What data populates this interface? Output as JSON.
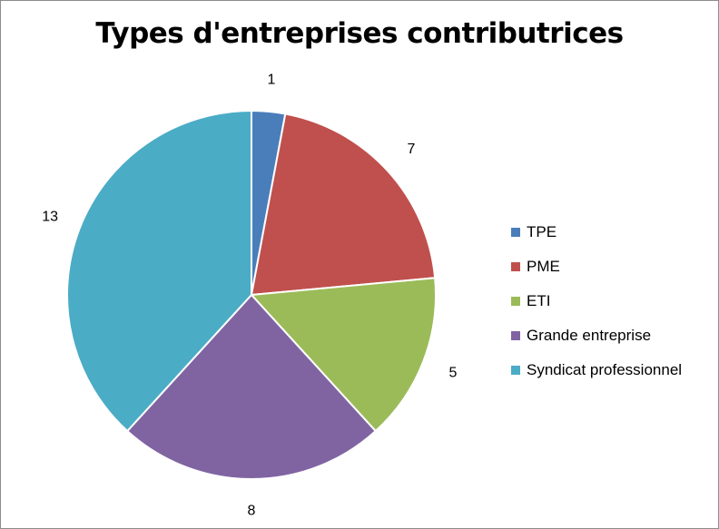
{
  "chart_data": {
    "type": "pie",
    "title": "Types d'entreprises contributrices",
    "categories": [
      "TPE",
      "PME",
      "ETI",
      "Grande entreprise",
      "Syndicat professionnel"
    ],
    "values": [
      1,
      7,
      5,
      8,
      13
    ],
    "colors": [
      "#4A7EBB",
      "#C0504D",
      "#9BBB59",
      "#8064A2",
      "#4BACC6"
    ],
    "start_angle": "12 o'clock",
    "direction": "clockwise",
    "data_labels": true,
    "legend_position": "right"
  }
}
